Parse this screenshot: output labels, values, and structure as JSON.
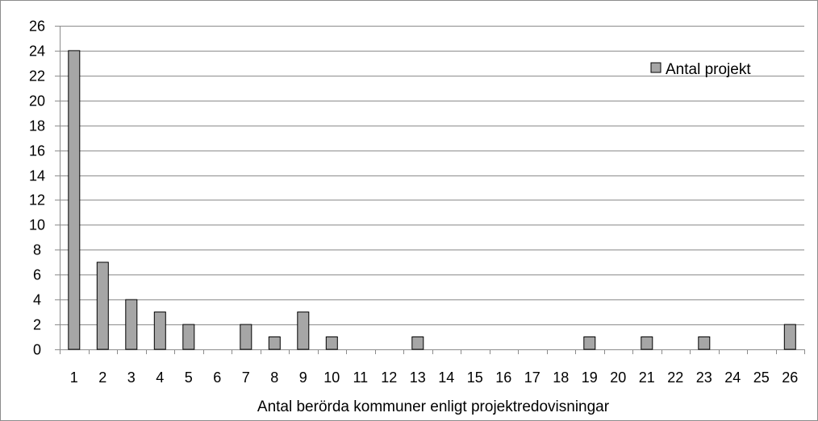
{
  "chart_data": {
    "type": "bar",
    "categories": [
      "1",
      "2",
      "3",
      "4",
      "5",
      "6",
      "7",
      "8",
      "9",
      "10",
      "11",
      "12",
      "13",
      "14",
      "15",
      "16",
      "17",
      "18",
      "19",
      "20",
      "21",
      "22",
      "23",
      "24",
      "25",
      "26"
    ],
    "series": [
      {
        "name": "Antal projekt",
        "values": [
          24,
          7,
          4,
          3,
          2,
          0,
          2,
          1,
          3,
          1,
          0,
          0,
          1,
          0,
          0,
          0,
          0,
          0,
          1,
          0,
          1,
          0,
          1,
          0,
          0,
          2
        ]
      }
    ],
    "xlabel": "Antal berörda kommuner enligt projektredovisningar",
    "ylabel": "",
    "ylim": [
      0,
      26
    ],
    "yticks": [
      0,
      2,
      4,
      6,
      8,
      10,
      12,
      14,
      16,
      18,
      20,
      22,
      24,
      26
    ],
    "grid": true,
    "legend_position": "top-right",
    "colors": {
      "bar_fill": "#a6a6a6",
      "bar_stroke": "#000000",
      "grid": "#8c8c8c",
      "axis": "#8c8c8c"
    }
  }
}
